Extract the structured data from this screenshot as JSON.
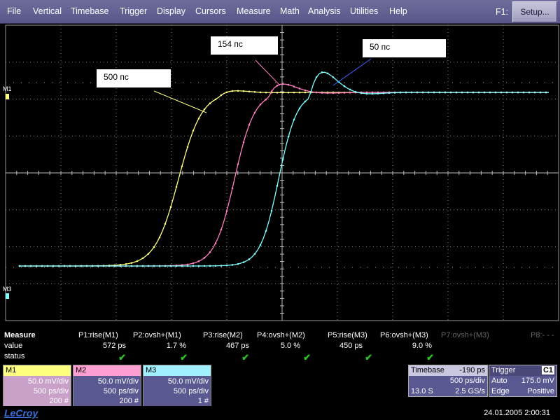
{
  "menu": {
    "items": [
      "File",
      "Vertical",
      "Timebase",
      "Trigger",
      "Display",
      "Cursors",
      "Measure",
      "Math",
      "Analysis",
      "Utilities",
      "Help"
    ],
    "f1_label": "F1:",
    "setup_label": "Setup..."
  },
  "annotations": {
    "a500": "500 пс",
    "a154": "154 пс",
    "a50": "50 пс"
  },
  "markers": {
    "m1": "M1",
    "m3": "M3"
  },
  "traces": {
    "colors": {
      "m1": "#ffff80",
      "m2": "#ff80c0",
      "m3": "#80ffff"
    }
  },
  "measure": {
    "title": "Measure",
    "value_label": "value",
    "status_label": "status",
    "params": [
      {
        "name": "P1:rise(M1)",
        "value": "572 ps",
        "status": "✔"
      },
      {
        "name": "P2:ovsh+(M1)",
        "value": "1.7 %",
        "status": "✔"
      },
      {
        "name": "P3:rise(M2)",
        "value": "467 ps",
        "status": "✔"
      },
      {
        "name": "P4:ovsh+(M2)",
        "value": "5.0 %",
        "status": "✔"
      },
      {
        "name": "P5:rise(M3)",
        "value": "450 ps",
        "status": "✔"
      },
      {
        "name": "P6:ovsh+(M3)",
        "value": "9.0 %",
        "status": "✔"
      },
      {
        "name": "P7:ovsh+(M3)",
        "value": "",
        "status": ""
      },
      {
        "name": "P8:- - -",
        "value": "",
        "status": ""
      }
    ]
  },
  "channels": [
    {
      "name": "M1",
      "vdiv": "50.0 mV/div",
      "tdiv": "500 ps/div",
      "count": "200 #",
      "hdr_color": "#ffff80",
      "body_color": "#c8a0c8"
    },
    {
      "name": "M2",
      "vdiv": "50.0 mV/div",
      "tdiv": "500 ps/div",
      "count": "200 #",
      "hdr_color": "#ff9ed0",
      "body_color": "#5a5890"
    },
    {
      "name": "M3",
      "vdiv": "50.0 mV/div",
      "tdiv": "500 ps/div",
      "count": "1 #",
      "hdr_color": "#a0f0ff",
      "body_color": "#5a5890"
    }
  ],
  "timebase": {
    "label": "Timebase",
    "offset": "-190 ps",
    "tdiv": "500 ps/div",
    "samples": "13.0 S",
    "rate": "2.5 GS/s"
  },
  "trigger": {
    "label": "Trigger",
    "channel": "C1",
    "mode": "Auto",
    "level": "175.0 mV",
    "type": "Edge",
    "slope": "Positive"
  },
  "footer": {
    "brand": "LeCroy",
    "datetime": "24.01.2005 2:00:31"
  }
}
